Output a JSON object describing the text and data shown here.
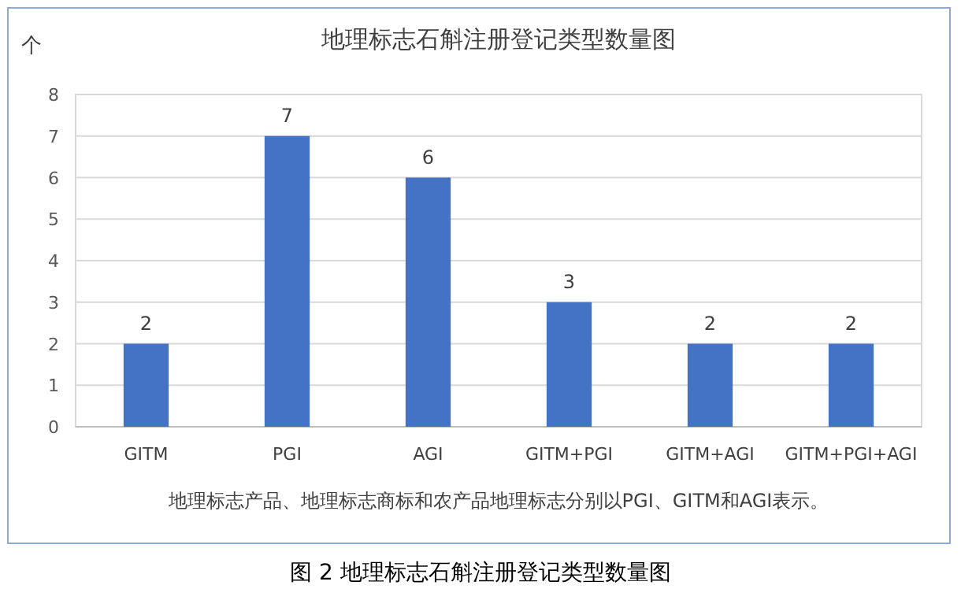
{
  "chart_data": {
    "type": "bar",
    "title": "地理标志石斛注册登记类型数量图",
    "ylabel": "个",
    "categories": [
      "GITM",
      "PGI",
      "AGI",
      "GITM+PGI",
      "GITM+AGI",
      "GITM+PGI+AGI"
    ],
    "values": [
      2,
      7,
      6,
      3,
      2,
      2
    ],
    "color": "#4472c4",
    "ylim": [
      0,
      8
    ],
    "yticks": [
      0,
      1,
      2,
      3,
      4,
      5,
      6,
      7,
      8
    ],
    "grid": "y",
    "data_labels": true,
    "annotations": [
      "地理标志产品、地理标志商标和农产品地理标志分别以PGI、GITM和AGI表示。",
      "图 2 地理标志石斛注册登记类型数量图"
    ]
  }
}
